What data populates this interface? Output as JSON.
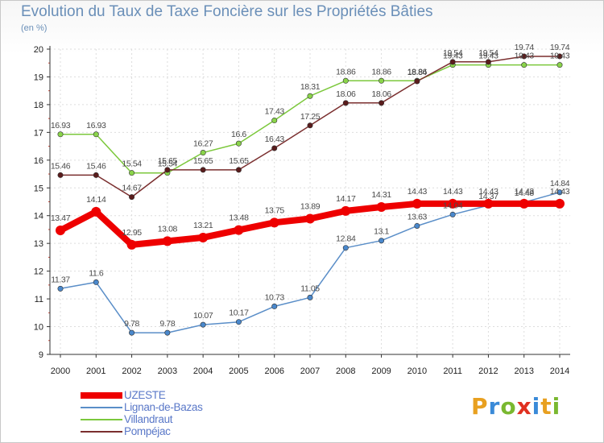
{
  "header": {
    "title": "Evolution du Taux de Taxe Foncière sur les Propriétés Bâties",
    "unit": "(en %)"
  },
  "logo": {
    "letters": [
      "P",
      "r",
      "o",
      "x",
      "i",
      "t",
      "i"
    ],
    "colors": [
      "#e8a020",
      "#3a8ad8",
      "#7ab830",
      "#e03020",
      "#3a8ad8",
      "#e8a020",
      "#7ab830"
    ]
  },
  "chart_data": {
    "type": "line",
    "x": [
      "2000",
      "2001",
      "2002",
      "2003",
      "2004",
      "2005",
      "2006",
      "2007",
      "2008",
      "2009",
      "2010",
      "2011",
      "2012",
      "2013",
      "2014"
    ],
    "ylim": [
      9,
      20
    ],
    "yticks": [
      "9",
      "10",
      "11",
      "12",
      "13",
      "14",
      "15",
      "16",
      "17",
      "18",
      "19",
      "20"
    ],
    "grid": true,
    "legend_position": "bottom-left",
    "series": [
      {
        "name": "Villandraut",
        "color": "#7cc83c",
        "fill": "#8ad44a",
        "width": 1.5,
        "values": [
          16.93,
          16.93,
          15.54,
          15.54,
          16.27,
          16.6,
          17.43,
          18.31,
          18.86,
          18.86,
          18.86,
          19.43,
          19.43,
          19.43,
          19.43
        ],
        "labels": [
          "16.93",
          "16.93",
          "15.54",
          "15.54",
          "16.27",
          "16.6",
          "17.43",
          "18.31",
          "18.86",
          "18.86",
          "18.86",
          "19.43",
          "19.43",
          "19.43",
          "19.43"
        ]
      },
      {
        "name": "Pompéjac",
        "color": "#7a2e2e",
        "fill": "#5a1c1c",
        "width": 1.5,
        "values": [
          15.46,
          15.46,
          14.67,
          15.65,
          15.65,
          15.65,
          16.43,
          17.25,
          18.06,
          18.06,
          18.84,
          19.54,
          19.54,
          19.74,
          19.74
        ],
        "labels": [
          "15.46",
          "15.46",
          "14.67",
          "15.65",
          "15.65",
          "15.65",
          "16.43",
          "17.25",
          "18.06",
          "18.06",
          "18.84",
          "19.54",
          "19.54",
          "19.74",
          "19.74"
        ]
      },
      {
        "name": "Lignan-de-Bazas",
        "color": "#5a8ec8",
        "fill": "#4a88cc",
        "width": 1.5,
        "values": [
          11.37,
          11.6,
          9.78,
          9.78,
          10.07,
          10.17,
          10.73,
          11.05,
          12.84,
          13.1,
          13.63,
          14.04,
          14.37,
          14.48,
          14.84
        ],
        "labels": [
          "11.37",
          "11.6",
          "9.78",
          "9.78",
          "10.07",
          "10.17",
          "10.73",
          "11.05",
          "12.84",
          "13.1",
          "13.63",
          "14.04",
          "14.37",
          "14.48",
          "14.84"
        ]
      },
      {
        "name": "UZESTE",
        "color": "#ee0000",
        "fill": "#ee0000",
        "width": 8,
        "values": [
          13.47,
          14.14,
          12.95,
          13.08,
          13.21,
          13.48,
          13.75,
          13.89,
          14.17,
          14.31,
          14.43,
          14.43,
          14.43,
          14.43,
          14.43
        ],
        "labels": [
          "13.47",
          "14.14",
          "12.95",
          "13.08",
          "13.21",
          "13.48",
          "13.75",
          "13.89",
          "14.17",
          "14.31",
          "14.43",
          "14.43",
          "14.43",
          "14.43",
          "14.43"
        ]
      }
    ]
  },
  "legend": {
    "entries": [
      {
        "label": "UZESTE",
        "color": "#ee0000",
        "thickness": 8
      },
      {
        "label": "Lignan-de-Bazas",
        "color": "#5a8ec8",
        "thickness": 2
      },
      {
        "label": "Villandraut",
        "color": "#7cc83c",
        "thickness": 2
      },
      {
        "label": "Pompéjac",
        "color": "#7a2e2e",
        "thickness": 2
      }
    ]
  }
}
